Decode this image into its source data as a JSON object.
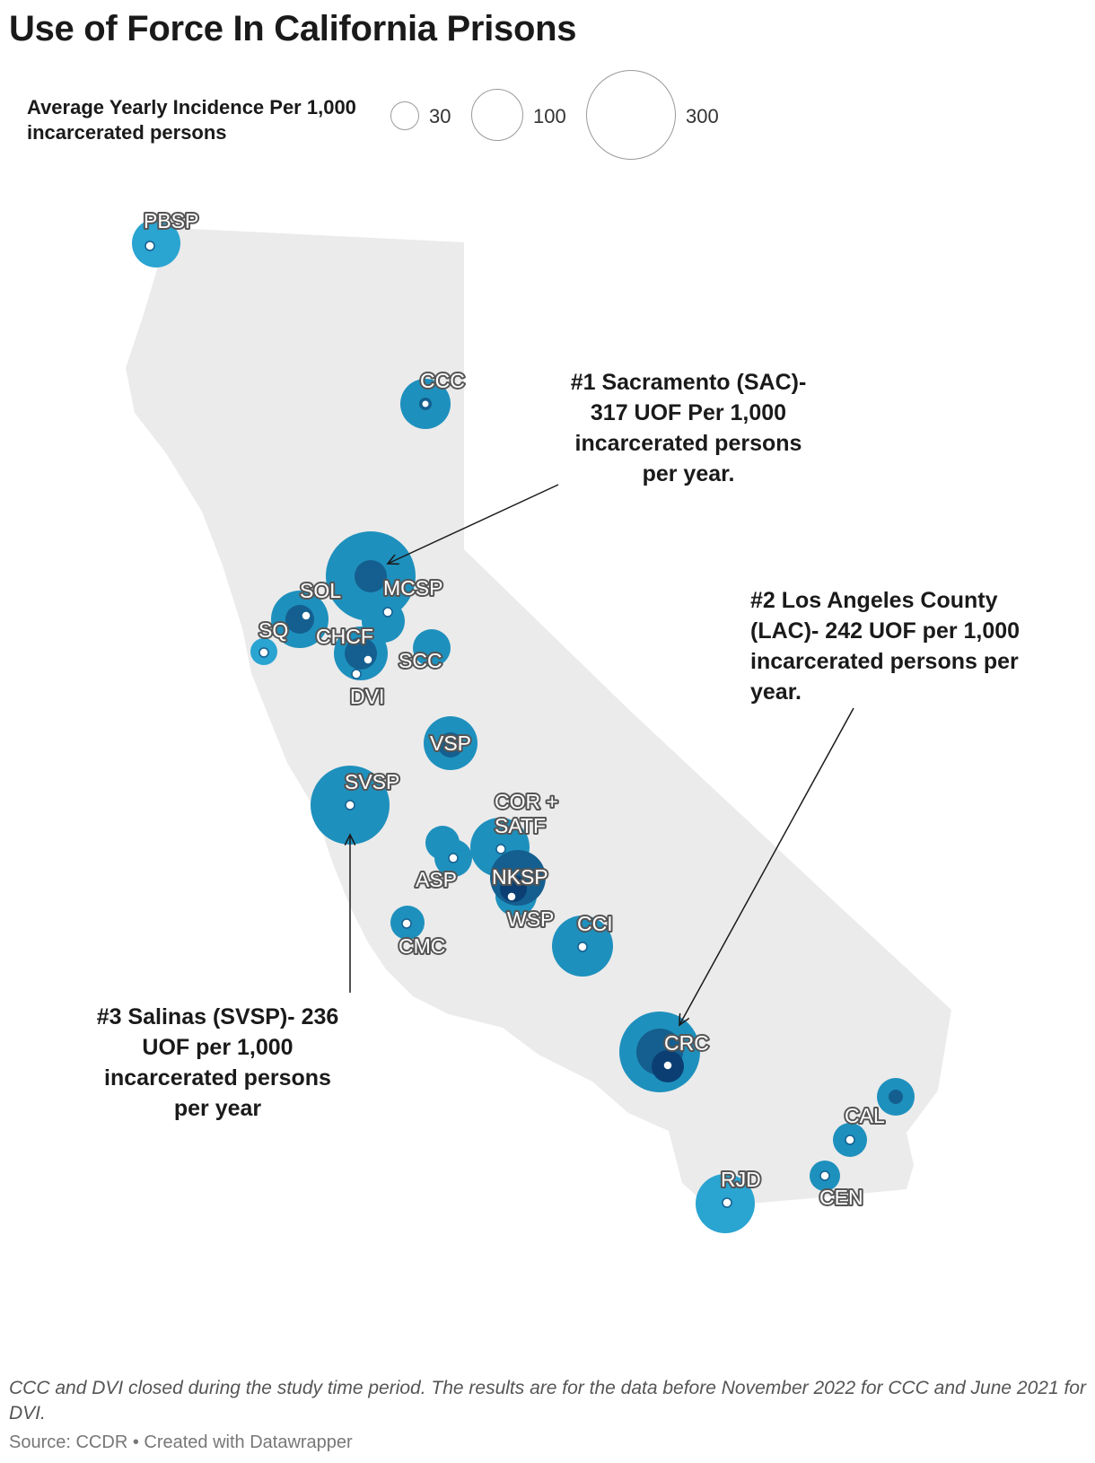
{
  "title": "Use of Force In California Prisons",
  "legend": {
    "title": "Average Yearly Incidence Per 1,000 incarcerated persons",
    "sizes": [
      {
        "value": 30,
        "label": "30"
      },
      {
        "value": 100,
        "label": "100"
      },
      {
        "value": 300,
        "label": "300"
      }
    ]
  },
  "colors": {
    "land": "#ebebeb",
    "bubble_light": "#2aa4d1",
    "bubble_mid": "#1e90bd",
    "bubble_dark": "#145f8f",
    "bubble_darkest": "#0b3f73",
    "label_outline": "#555555"
  },
  "prisons": [
    {
      "label": "PBSP"
    },
    {
      "label": "CCC"
    },
    {
      "label": "MCSP"
    },
    {
      "label": "SOL"
    },
    {
      "label": "SQ"
    },
    {
      "label": "CHCF"
    },
    {
      "label": "SCC"
    },
    {
      "label": "DVI"
    },
    {
      "label": "VSP"
    },
    {
      "label": "SVSP"
    },
    {
      "label": "COR +"
    },
    {
      "label": "SATF"
    },
    {
      "label": "ASP"
    },
    {
      "label": "NKSP"
    },
    {
      "label": "WSP"
    },
    {
      "label": "CMC"
    },
    {
      "label": "CCI"
    },
    {
      "label": "CRC"
    },
    {
      "label": "CAL"
    },
    {
      "label": "CEN"
    },
    {
      "label": "RJD"
    }
  ],
  "annotations": {
    "sac": "#1 Sacramento (SAC)- 317 UOF Per 1,000 incarcerated persons per year.",
    "lac": "#2 Los Angeles County (LAC)- 242 UOF per 1,000 incarcerated persons per year.",
    "svsp": "#3 Salinas (SVSP)- 236 UOF per 1,000 incarcerated persons per year"
  },
  "footnote": "CCC and DVI closed during the study time period. The results are for the data before November 2022 for CCC and June 2021 for DVI.",
  "source": "Source: CCDR • Created with Datawrapper"
}
